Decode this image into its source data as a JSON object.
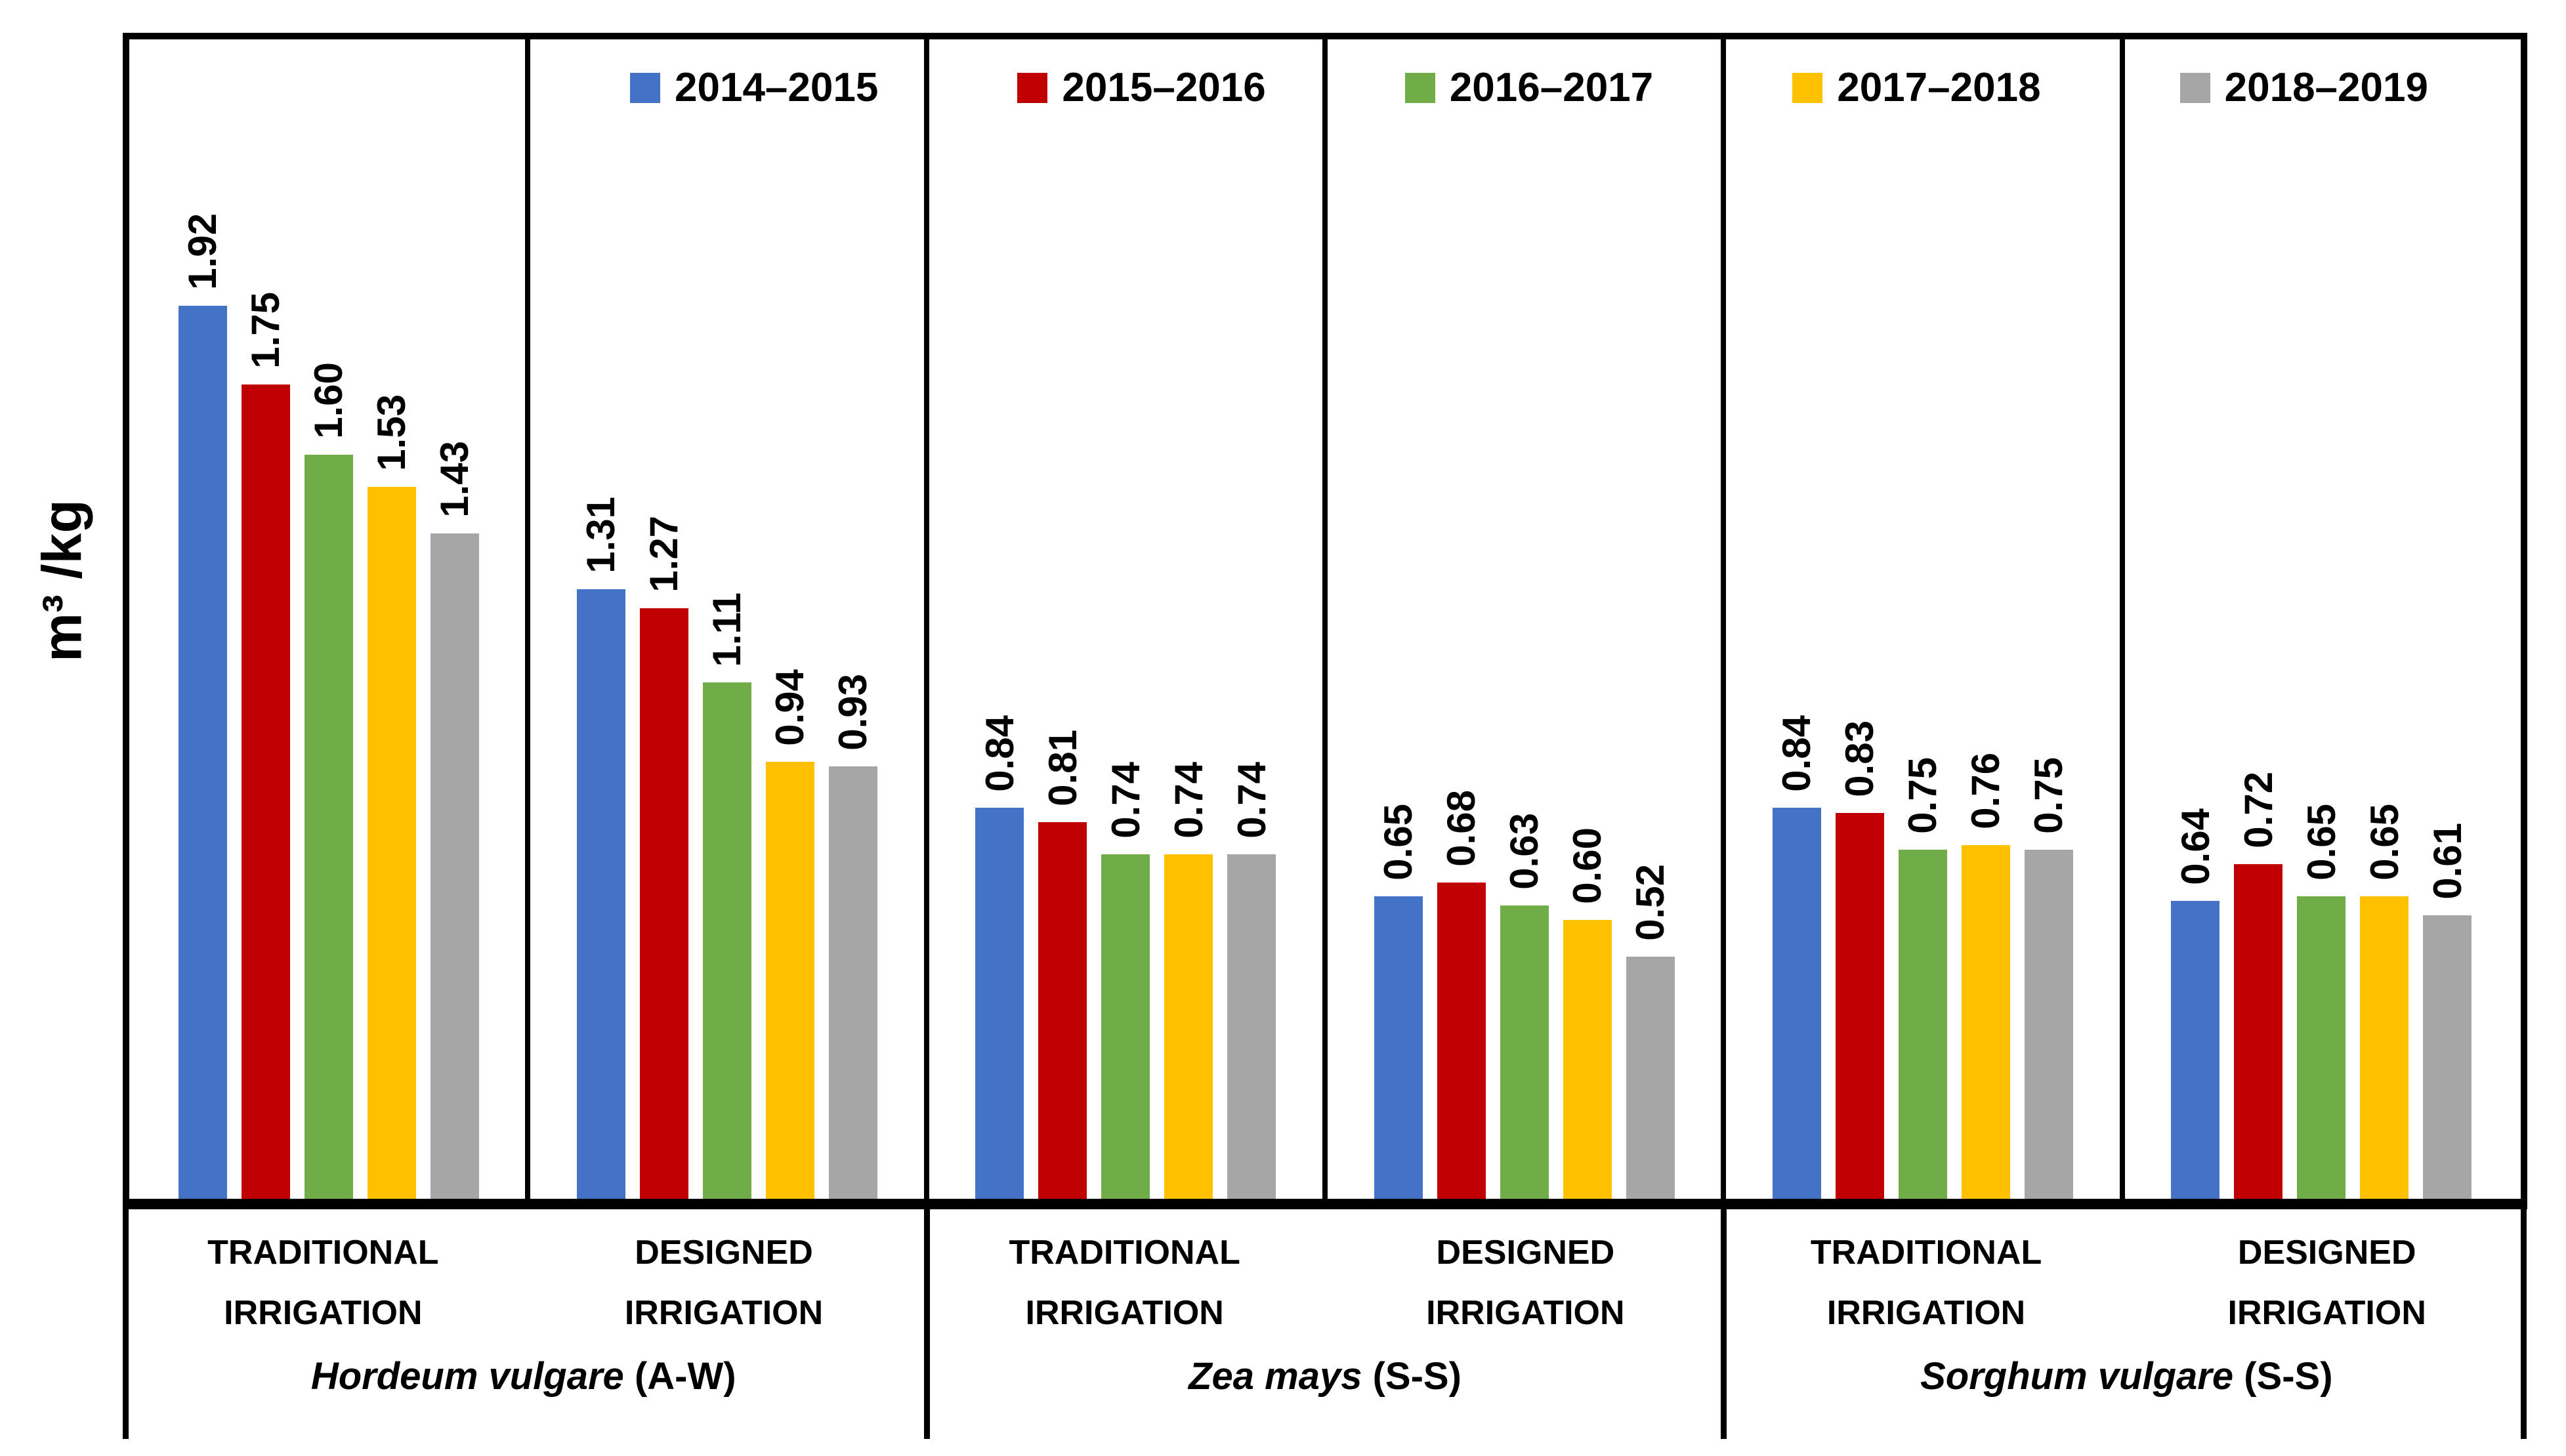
{
  "chart_data": {
    "type": "bar",
    "title": "",
    "ylabel": "m³ /kg",
    "xlabel": "",
    "grid": false,
    "y_axis_tick_labels_visible": false,
    "ylim": [
      0,
      2.5
    ],
    "legend_position": "top",
    "value_label_rotation": "vertical-bottom-to-top",
    "value_label_format": "0.00",
    "series_names": [
      "2014–2015",
      "2015–2016",
      "2016–2017",
      "2017–2018",
      "2018–2019"
    ],
    "series_colors": [
      "#4472C4",
      "#C00000",
      "#70AD47",
      "#FFC000",
      "#A6A6A6"
    ],
    "border_color": "#000000",
    "groups": [
      {
        "crop": "Hordeum vulgare",
        "crop_suffix": "(A-W)",
        "panels": [
          {
            "category": "TRADITIONAL IRRIGATION",
            "values": [
              1.92,
              1.75,
              1.6,
              1.53,
              1.43
            ]
          },
          {
            "category": "DESIGNED IRRIGATION",
            "values": [
              1.31,
              1.27,
              1.11,
              0.94,
              0.93
            ]
          }
        ]
      },
      {
        "crop": "Zea mays",
        "crop_suffix": "(S-S)",
        "panels": [
          {
            "category": "TRADITIONAL IRRIGATION",
            "values": [
              0.84,
              0.81,
              0.74,
              0.74,
              0.74
            ]
          },
          {
            "category": "DESIGNED IRRIGATION",
            "values": [
              0.65,
              0.68,
              0.63,
              0.6,
              0.52
            ]
          }
        ]
      },
      {
        "crop": "Sorghum vulgare",
        "crop_suffix": "(S-S)",
        "panels": [
          {
            "category": "TRADITIONAL IRRIGATION",
            "values": [
              0.84,
              0.83,
              0.75,
              0.76,
              0.75
            ]
          },
          {
            "category": "DESIGNED IRRIGATION",
            "values": [
              0.64,
              0.72,
              0.65,
              0.65,
              0.61
            ]
          }
        ]
      }
    ]
  }
}
